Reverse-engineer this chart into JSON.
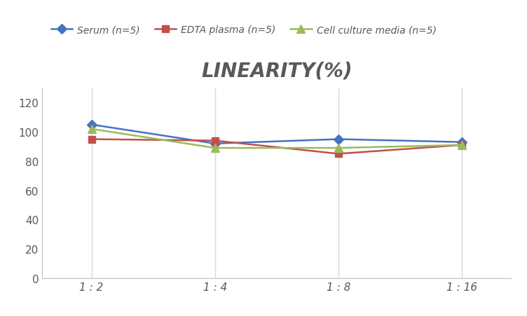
{
  "title": "LINEARITY(%)",
  "x_labels": [
    "1 : 2",
    "1 : 4",
    "1 : 8",
    "1 : 16"
  ],
  "x_positions": [
    0,
    1,
    2,
    3
  ],
  "series": [
    {
      "label": "Serum (n=5)",
      "values": [
        105,
        92,
        95,
        93
      ],
      "color": "#4472C4",
      "marker": "D",
      "markersize": 7,
      "linewidth": 1.8
    },
    {
      "label": "EDTA plasma (n=5)",
      "values": [
        95,
        94,
        85,
        91
      ],
      "color": "#C0504D",
      "marker": "s",
      "markersize": 7,
      "linewidth": 1.8
    },
    {
      "label": "Cell culture media (n=5)",
      "values": [
        102,
        89,
        89,
        91
      ],
      "color": "#9BBB59",
      "marker": "^",
      "markersize": 8,
      "linewidth": 1.8
    }
  ],
  "ylim": [
    0,
    130
  ],
  "yticks": [
    0,
    20,
    40,
    60,
    80,
    100,
    120
  ],
  "background_color": "#FFFFFF",
  "grid_color": "#D9D9D9",
  "title_fontsize": 20,
  "legend_fontsize": 10,
  "tick_fontsize": 11,
  "tick_color": "#595959"
}
